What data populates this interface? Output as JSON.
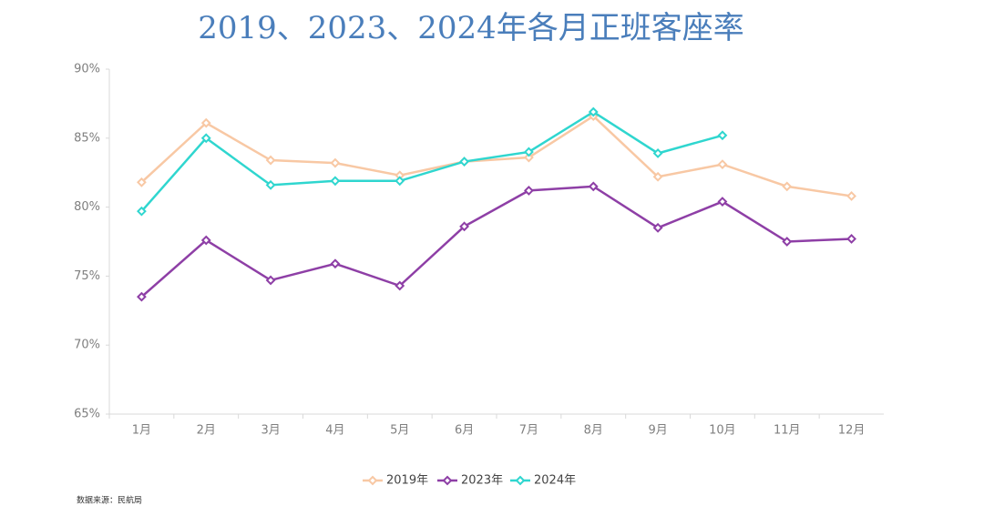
{
  "chart_data": {
    "type": "line",
    "title": "2019、2023、2024年各月正班客座率",
    "source": "数据来源：民航局",
    "categories": [
      "1月",
      "2月",
      "3月",
      "4月",
      "5月",
      "6月",
      "7月",
      "8月",
      "9月",
      "10月",
      "11月",
      "12月"
    ],
    "series": [
      {
        "name": "2019年",
        "color": "#f8c8a4",
        "values": [
          81.8,
          86.1,
          83.4,
          83.2,
          82.3,
          83.3,
          83.6,
          86.6,
          82.2,
          83.1,
          81.5,
          80.8
        ]
      },
      {
        "name": "2023年",
        "color": "#8e3fa6",
        "values": [
          73.5,
          77.6,
          74.7,
          75.9,
          74.3,
          78.6,
          81.2,
          81.5,
          78.5,
          80.4,
          77.5,
          77.7
        ]
      },
      {
        "name": "2024年",
        "color": "#2fd6cf",
        "values": [
          79.7,
          85.0,
          81.6,
          81.9,
          81.9,
          83.3,
          84.0,
          86.9,
          83.9,
          85.2,
          null,
          null
        ]
      }
    ],
    "ylim": [
      65,
      90
    ],
    "yticks": [
      {
        "value": 65,
        "label": "65%"
      },
      {
        "value": 70,
        "label": "70%"
      },
      {
        "value": 75,
        "label": "75%"
      },
      {
        "value": 80,
        "label": "80%"
      },
      {
        "value": 85,
        "label": "85%"
      },
      {
        "value": 90,
        "label": "90%"
      }
    ],
    "grid": false,
    "legend": "bottom"
  }
}
